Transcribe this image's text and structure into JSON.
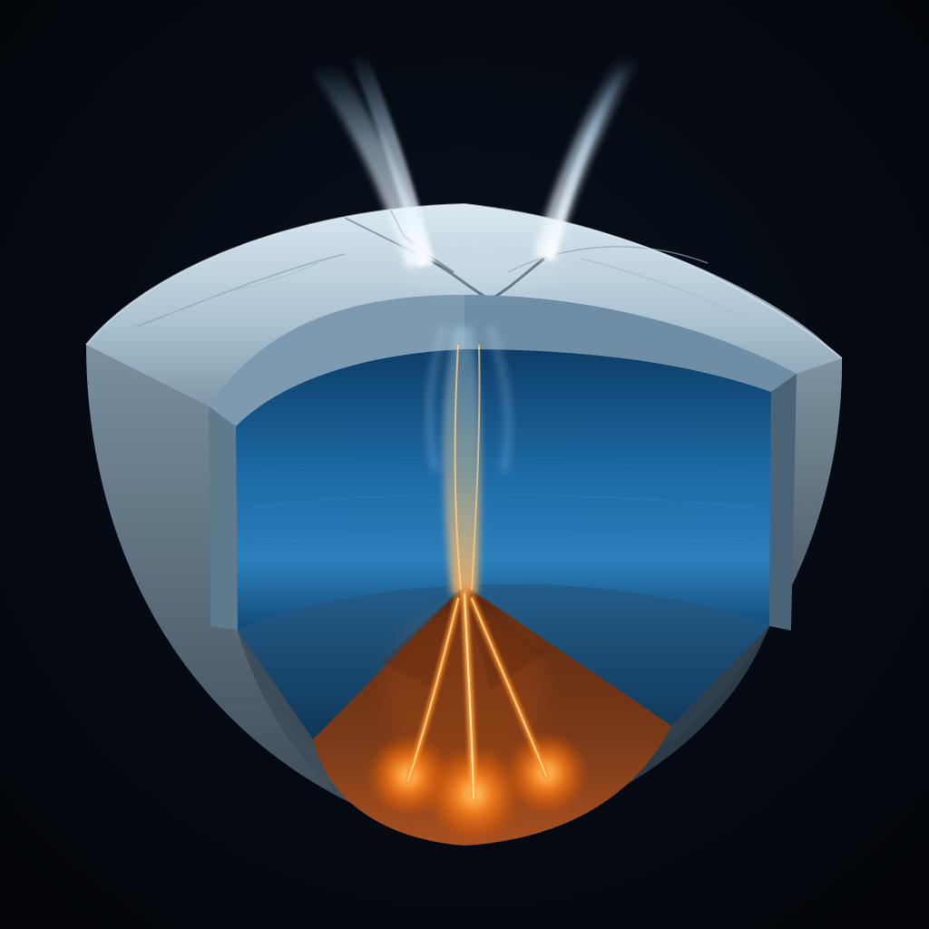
{
  "scene": {
    "subject": "ice-moon-cross-section",
    "colors": {
      "space": "#020409",
      "ice_light": "#cfdfe9",
      "ice_mid": "#8fa7b8",
      "ice_dark": "#3d4a55",
      "ocean_light": "#2f7fb8",
      "ocean_dark": "#0b3558",
      "rock": "#6a2f16",
      "rock_dark": "#2a120a",
      "lava": "#ff7a1a",
      "lava_glow": "#ffb347",
      "plume": "#e8f6ff"
    }
  }
}
